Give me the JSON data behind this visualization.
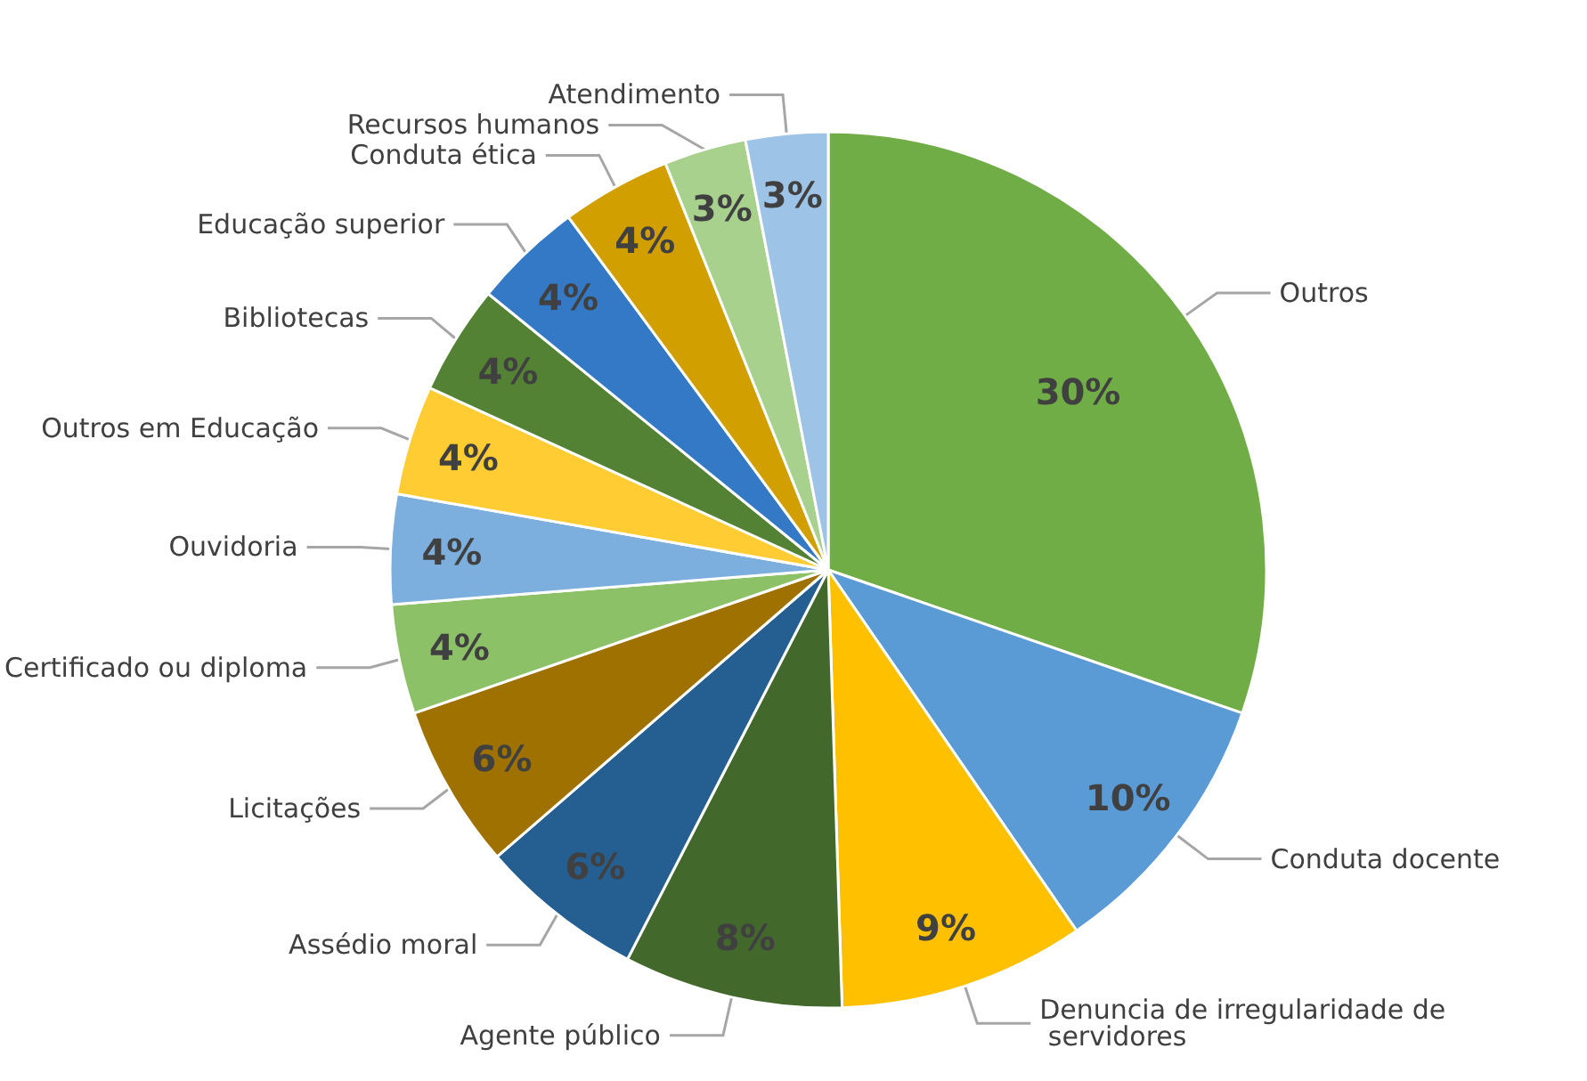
{
  "chart_data": {
    "type": "pie",
    "categories": [
      "Outros",
      "Conduta docente",
      "Denuncia de irregularidade de servidores",
      "Agente público",
      "Assédio moral",
      "Licitações",
      "Certificado ou diploma",
      "Ouvidoria",
      "Outros em Educação",
      "Bibliotecas",
      "Educação superior",
      "Conduta ética",
      "Recursos humanos",
      "Atendimento"
    ],
    "values": [
      30,
      10,
      9,
      8,
      6,
      6,
      4,
      4,
      4,
      4,
      4,
      4,
      3,
      3
    ],
    "value_labels": [
      "30%",
      "10%",
      "9%",
      "8%",
      "6%",
      "6%",
      "4%",
      "4%",
      "4%",
      "4%",
      "4%",
      "4%",
      "3%",
      "3%"
    ],
    "colors": [
      "#70ad47",
      "#5b9bd5",
      "#ffc000",
      "#43682b",
      "#255e91",
      "#9e7100",
      "#8cc168",
      "#7cafdd",
      "#ffcd33",
      "#548235",
      "#3479c6",
      "#d29f00",
      "#a9d18e",
      "#9dc3e6"
    ],
    "legend": false
  }
}
